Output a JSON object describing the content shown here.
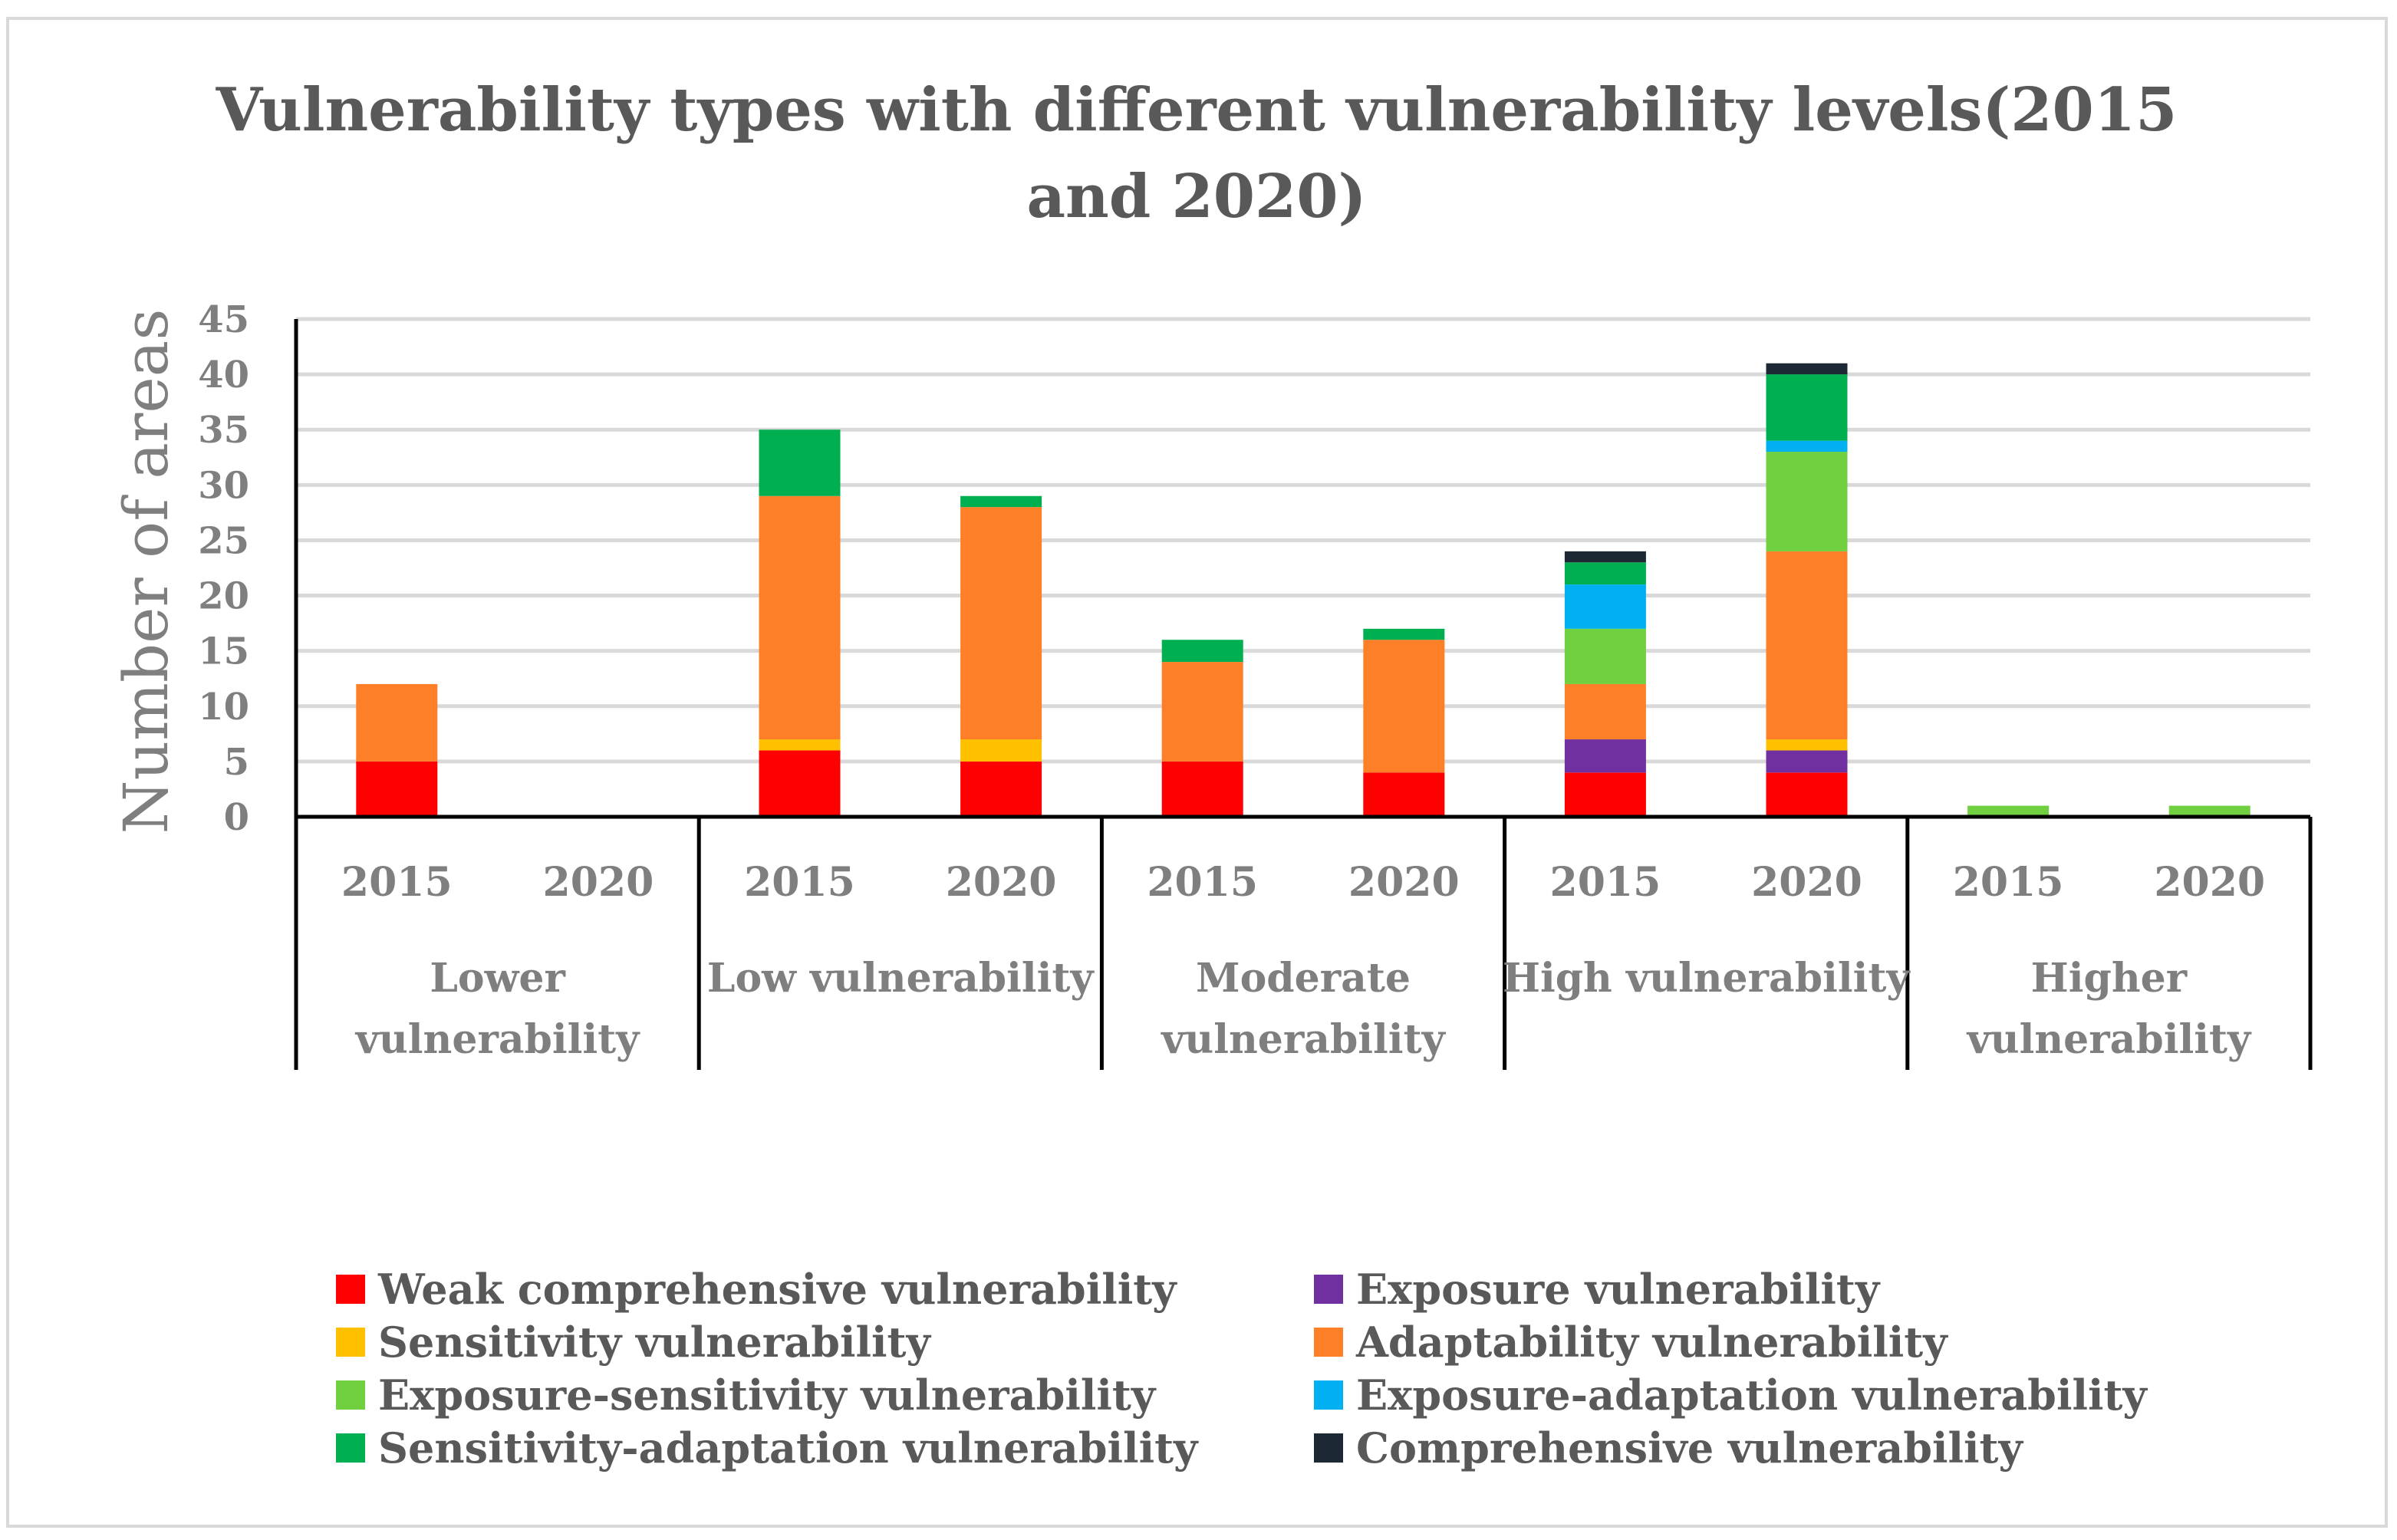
{
  "chart_data": {
    "type": "bar",
    "stacked": true,
    "title": "Vulnerability types with different vulnerability levels(2015 and 2020)",
    "title_lines": [
      "Vulnerability types with different vulnerability levels(2015",
      "and 2020)"
    ],
    "ylabel": "Number of areas",
    "xlabel": "",
    "ylim": [
      0,
      45
    ],
    "yticks": [
      0,
      5,
      10,
      15,
      20,
      25,
      30,
      35,
      40,
      45
    ],
    "grid": true,
    "legend_position": "bottom",
    "groups": [
      {
        "label_lines": [
          "Lower",
          "vulnerability"
        ],
        "categories": [
          "2015",
          "2020"
        ]
      },
      {
        "label_lines": [
          "Low vulnerability"
        ],
        "categories": [
          "2015",
          "2020"
        ]
      },
      {
        "label_lines": [
          "Moderate",
          "vulnerability"
        ],
        "categories": [
          "2015",
          "2020"
        ]
      },
      {
        "label_lines": [
          "High vulnerability"
        ],
        "categories": [
          "2015",
          "2020"
        ]
      },
      {
        "label_lines": [
          "Higher",
          "vulnerability"
        ],
        "categories": [
          "2015",
          "2020"
        ]
      }
    ],
    "categories": [
      "2015",
      "2020",
      "2015",
      "2020",
      "2015",
      "2020",
      "2015",
      "2020",
      "2015",
      "2020"
    ],
    "series": [
      {
        "name": "Weak comprehensive vulnerability",
        "color": "#ff0000",
        "values": [
          5,
          0,
          6,
          5,
          5,
          4,
          4,
          4,
          0,
          0
        ]
      },
      {
        "name": "Exposure vulnerability",
        "color": "#7030a0",
        "values": [
          0,
          0,
          0,
          0,
          0,
          0,
          3,
          2,
          0,
          0
        ]
      },
      {
        "name": "Sensitivity vulnerability",
        "color": "#ffc000",
        "values": [
          0,
          0,
          1,
          2,
          0,
          0,
          0,
          1,
          0,
          0
        ]
      },
      {
        "name": "Adaptability vulnerability",
        "color": "#fd7f27",
        "values": [
          7,
          0,
          22,
          21,
          9,
          12,
          5,
          17,
          0,
          0
        ]
      },
      {
        "name": "Exposure-sensitivity vulnerability",
        "color": "#70d040",
        "values": [
          0,
          0,
          0,
          0,
          0,
          0,
          5,
          9,
          1,
          1
        ]
      },
      {
        "name": "Exposure-adaptation vulnerability",
        "color": "#00b0f0",
        "values": [
          0,
          0,
          0,
          0,
          0,
          0,
          4,
          1,
          0,
          0
        ]
      },
      {
        "name": "Sensitivity-adaptation vulnerability",
        "color": "#00b050",
        "values": [
          0,
          0,
          6,
          1,
          2,
          1,
          2,
          6,
          0,
          0
        ]
      },
      {
        "name": "Comprehensive vulnerability",
        "color": "#1c2833",
        "values": [
          0,
          0,
          0,
          0,
          0,
          0,
          1,
          1,
          0,
          0
        ]
      }
    ]
  }
}
